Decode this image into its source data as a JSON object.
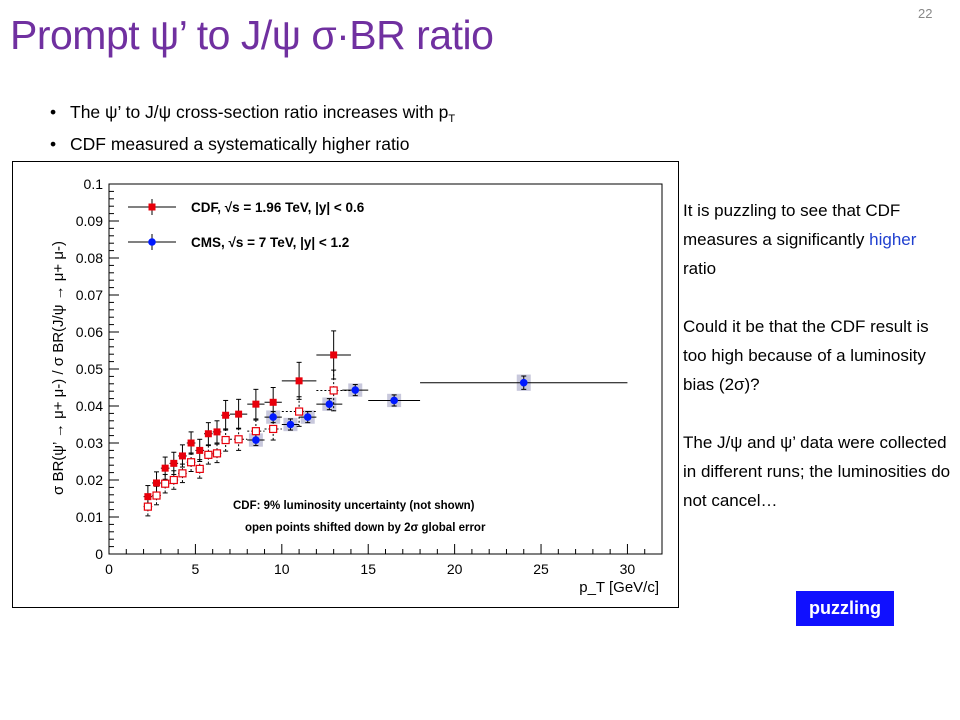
{
  "slide": {
    "title": "Prompt ψ’ to J/ψ σ·BR ratio",
    "number": "22"
  },
  "bullets": [
    {
      "pre": "The ψ’ to J/ψ cross-section ratio increases with p",
      "sub": "T"
    },
    {
      "pre": "CDF measured a systematically higher ratio",
      "sub": ""
    }
  ],
  "side_text": {
    "p1_before": "It is puzzling to see that CDF measures a significantly ",
    "p1_highlight": "higher",
    "p1_after": " ratio",
    "p2": "Could it be that the CDF result is too high because of a luminosity bias (2σ)?",
    "p3": "The J/ψ and ψ’ data were collected in different runs; the luminosities do not cancel…"
  },
  "badge": {
    "label": "puzzling"
  },
  "colors": {
    "title": "#7030a0",
    "cdf": "#e8000b",
    "cms": "#0019ff",
    "badge": "#1010ff"
  },
  "chart_data": {
    "type": "scatter",
    "xlabel": "p_T [GeV/c]",
    "ylabel": "σ BR(ψ’ → μ+ μ-) / σ BR(J/ψ → μ+ μ-)",
    "xlim": [
      0,
      32
    ],
    "ylim": [
      0,
      0.1
    ],
    "x_ticks": [
      0,
      5,
      10,
      15,
      20,
      25,
      30
    ],
    "y_ticks": [
      0,
      0.01,
      0.02,
      0.03,
      0.04,
      0.05,
      0.06,
      0.07,
      0.08,
      0.09,
      0.1
    ],
    "legend_position": "top-left",
    "annotations": [
      "CDF: 9% luminosity uncertainty (not shown)",
      "open points shifted down by 2σ global error"
    ],
    "series": [
      {
        "name": "CDF, √s = 1.96 TeV, |y| < 0.6",
        "marker": "filled-square",
        "color": "#e8000b",
        "points": [
          {
            "x": 2.25,
            "y": 0.0155,
            "xerr": 0.25,
            "yerr": 0.003
          },
          {
            "x": 2.75,
            "y": 0.0192,
            "xerr": 0.25,
            "yerr": 0.003
          },
          {
            "x": 3.25,
            "y": 0.0232,
            "xerr": 0.25,
            "yerr": 0.003
          },
          {
            "x": 3.75,
            "y": 0.0245,
            "xerr": 0.25,
            "yerr": 0.003
          },
          {
            "x": 4.25,
            "y": 0.0265,
            "xerr": 0.25,
            "yerr": 0.003
          },
          {
            "x": 4.75,
            "y": 0.03,
            "xerr": 0.25,
            "yerr": 0.003
          },
          {
            "x": 5.25,
            "y": 0.028,
            "xerr": 0.25,
            "yerr": 0.003
          },
          {
            "x": 5.75,
            "y": 0.0325,
            "xerr": 0.25,
            "yerr": 0.003
          },
          {
            "x": 6.25,
            "y": 0.033,
            "xerr": 0.25,
            "yerr": 0.003
          },
          {
            "x": 6.75,
            "y": 0.0375,
            "xerr": 0.25,
            "yerr": 0.004
          },
          {
            "x": 7.5,
            "y": 0.0378,
            "xerr": 0.5,
            "yerr": 0.004
          },
          {
            "x": 8.5,
            "y": 0.0405,
            "xerr": 0.5,
            "yerr": 0.004
          },
          {
            "x": 9.5,
            "y": 0.041,
            "xerr": 0.5,
            "yerr": 0.004
          },
          {
            "x": 11,
            "y": 0.0468,
            "xerr": 1.0,
            "yerr": 0.005
          },
          {
            "x": 13,
            "y": 0.0538,
            "xerr": 1.0,
            "yerr": 0.0065
          }
        ]
      },
      {
        "name": "CDF shifted down by 2σ global error",
        "marker": "open-square",
        "color": "#e8000b",
        "points": [
          {
            "x": 2.25,
            "y": 0.0128,
            "xerr": 0.25,
            "yerr": 0.0025
          },
          {
            "x": 2.75,
            "y": 0.0158,
            "xerr": 0.25,
            "yerr": 0.0025
          },
          {
            "x": 3.25,
            "y": 0.019,
            "xerr": 0.25,
            "yerr": 0.0025
          },
          {
            "x": 3.75,
            "y": 0.02,
            "xerr": 0.25,
            "yerr": 0.0025
          },
          {
            "x": 4.25,
            "y": 0.0218,
            "xerr": 0.25,
            "yerr": 0.0025
          },
          {
            "x": 4.75,
            "y": 0.0248,
            "xerr": 0.25,
            "yerr": 0.0025
          },
          {
            "x": 5.25,
            "y": 0.023,
            "xerr": 0.25,
            "yerr": 0.0025
          },
          {
            "x": 5.75,
            "y": 0.0268,
            "xerr": 0.25,
            "yerr": 0.0025
          },
          {
            "x": 6.25,
            "y": 0.0272,
            "xerr": 0.25,
            "yerr": 0.0025
          },
          {
            "x": 6.75,
            "y": 0.0308,
            "xerr": 0.25,
            "yerr": 0.003
          },
          {
            "x": 7.5,
            "y": 0.031,
            "xerr": 0.5,
            "yerr": 0.003
          },
          {
            "x": 8.5,
            "y": 0.0332,
            "xerr": 0.5,
            "yerr": 0.003
          },
          {
            "x": 9.5,
            "y": 0.0338,
            "xerr": 0.5,
            "yerr": 0.003
          },
          {
            "x": 11,
            "y": 0.0385,
            "xerr": 1.0,
            "yerr": 0.004
          },
          {
            "x": 13,
            "y": 0.0442,
            "xerr": 1.0,
            "yerr": 0.0055
          }
        ]
      },
      {
        "name": "CMS, √s = 7 TeV, |y| < 1.2",
        "marker": "filled-circle",
        "color": "#0019ff",
        "points": [
          {
            "x": 8.5,
            "y": 0.0308,
            "xerr": 0.5,
            "yerr": 0.0015,
            "syst": 0.0018
          },
          {
            "x": 9.5,
            "y": 0.037,
            "xerr": 0.5,
            "yerr": 0.0015,
            "syst": 0.0018
          },
          {
            "x": 10.5,
            "y": 0.035,
            "xerr": 0.5,
            "yerr": 0.0015,
            "syst": 0.0018
          },
          {
            "x": 11.5,
            "y": 0.037,
            "xerr": 0.5,
            "yerr": 0.0015,
            "syst": 0.0018
          },
          {
            "x": 12.75,
            "y": 0.0405,
            "xerr": 0.75,
            "yerr": 0.0015,
            "syst": 0.0018
          },
          {
            "x": 14.25,
            "y": 0.0443,
            "xerr": 0.75,
            "yerr": 0.0015,
            "syst": 0.0018
          },
          {
            "x": 16.5,
            "y": 0.0415,
            "xerr": 1.5,
            "yerr": 0.0015,
            "syst": 0.0018
          },
          {
            "x": 24,
            "y": 0.0463,
            "xerr": 6.0,
            "yerr": 0.0018,
            "syst": 0.0022
          }
        ]
      }
    ]
  }
}
